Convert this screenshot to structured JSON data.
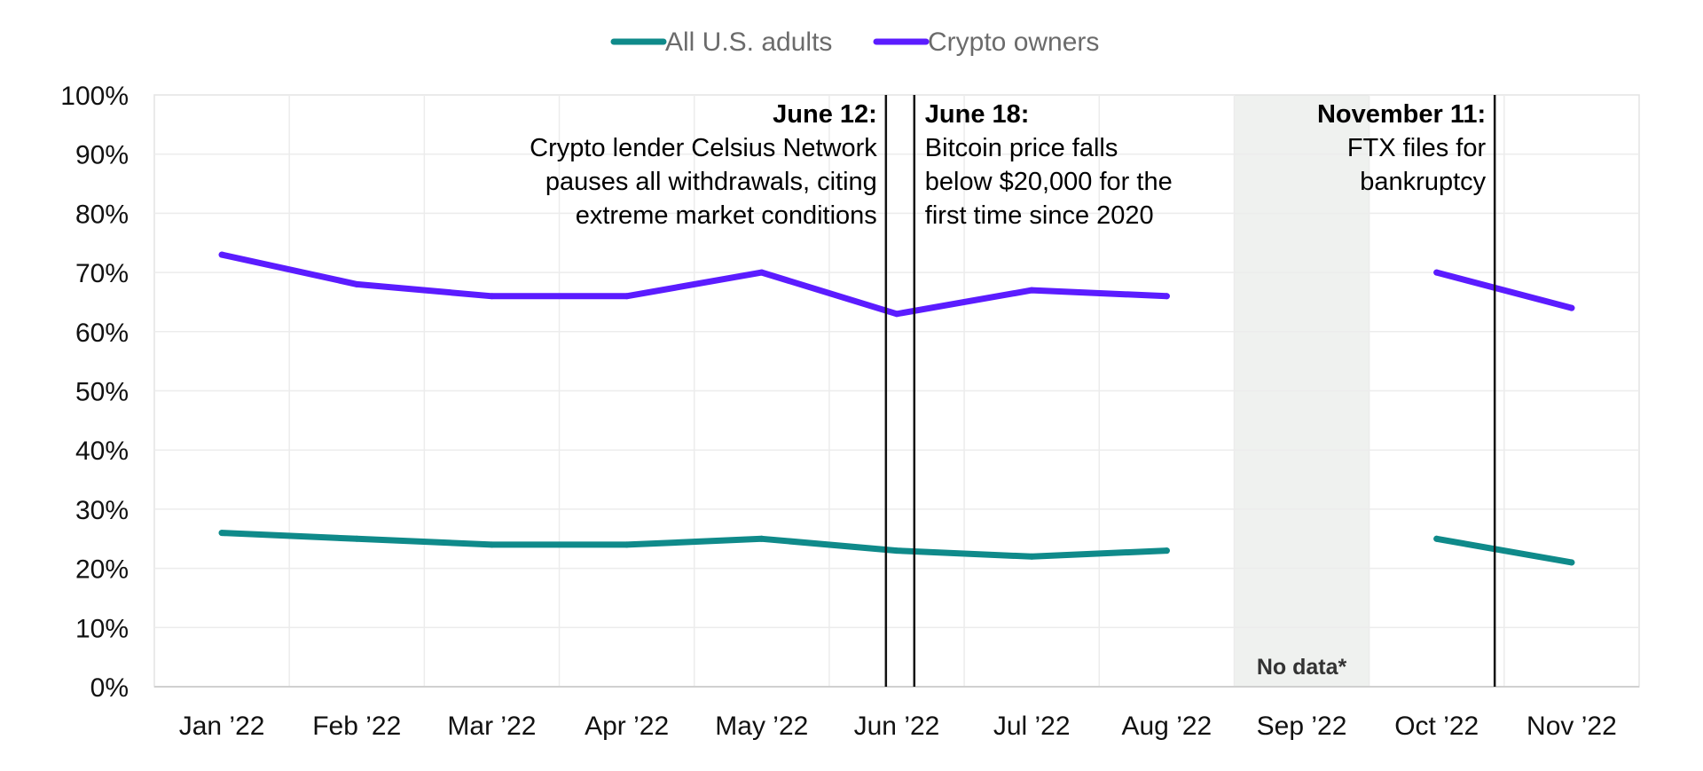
{
  "chart_data": {
    "type": "line",
    "categories": [
      "Jan ’22",
      "Feb ’22",
      "Mar ’22",
      "Apr ’22",
      "May ’22",
      "Jun ’22",
      "Jul ’22",
      "Aug ’22",
      "Sep ’22",
      "Oct ’22",
      "Nov ’22"
    ],
    "ylim": [
      0,
      100
    ],
    "y_ticks": [
      "0%",
      "10%",
      "20%",
      "30%",
      "40%",
      "50%",
      "60%",
      "70%",
      "80%",
      "90%",
      "100%"
    ],
    "grid": true,
    "legend_position": "top-center",
    "series": [
      {
        "name": "All U.S. adults",
        "color": "#0f8a8a",
        "values": [
          26,
          25,
          24,
          24,
          25,
          23,
          22,
          23,
          null,
          25,
          21
        ]
      },
      {
        "name": "Crypto owners",
        "color": "#5b1cff",
        "values": [
          73,
          68,
          66,
          66,
          70,
          63,
          67,
          66,
          null,
          70,
          64
        ]
      }
    ],
    "no_data": {
      "category": "Sep ’22",
      "label": "No data*",
      "color": "#eff1ef"
    },
    "annotations": [
      {
        "x": 5.42,
        "title": "June 12:",
        "lines": [
          "Crypto lender Celsius Network",
          "pauses all withdrawals, citing",
          "extreme market conditions"
        ],
        "align": "right"
      },
      {
        "x": 5.63,
        "title": "June 18:",
        "lines": [
          "Bitcoin price falls",
          "below $20,000 for the",
          "first time since 2020"
        ],
        "align": "left"
      },
      {
        "x": 9.93,
        "title": "November 11:",
        "lines": [
          "FTX files for",
          "bankruptcy"
        ],
        "align": "right"
      }
    ]
  }
}
